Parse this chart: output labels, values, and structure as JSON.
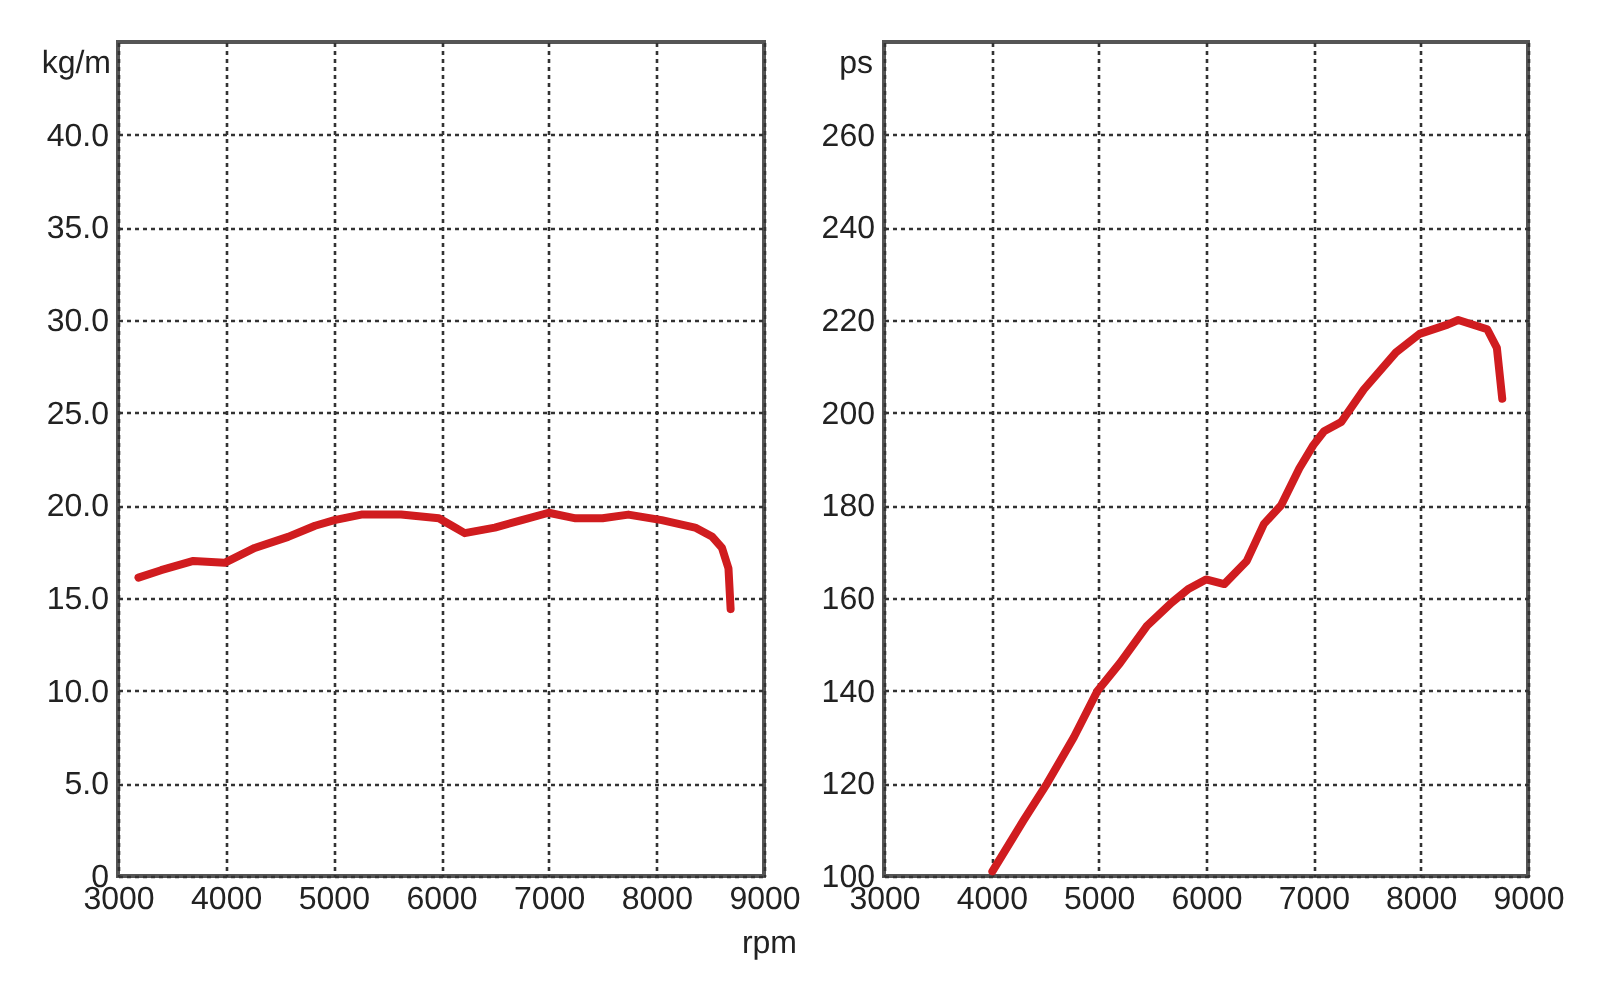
{
  "chart_data": [
    {
      "type": "line",
      "xlabel": "rpm",
      "ylabel": "kg/m",
      "color": "#d01c1f",
      "grid": true,
      "x": [
        3190,
        3400,
        3700,
        3990,
        4270,
        4580,
        4830,
        5010,
        5260,
        5630,
        5980,
        6130,
        6220,
        6500,
        6750,
        7000,
        7250,
        7500,
        7740,
        8050,
        8360,
        8520,
        8610,
        8670,
        8690
      ],
      "values": [
        16.1,
        16.5,
        17.0,
        16.9,
        17.7,
        18.3,
        18.9,
        19.2,
        19.5,
        19.5,
        19.3,
        18.8,
        18.5,
        18.8,
        19.2,
        19.6,
        19.3,
        19.3,
        19.5,
        19.2,
        18.8,
        18.3,
        17.7,
        16.6,
        14.4
      ],
      "xlim": [
        3000,
        9000
      ],
      "xticks": [
        3000,
        4000,
        5000,
        6000,
        7000,
        8000,
        9000
      ],
      "ylim": [
        0,
        45
      ],
      "yticks": [
        0,
        {
          "value": 5,
          "label": "5.0"
        },
        {
          "value": 10,
          "label": "10.0"
        },
        {
          "value": 15,
          "label": "15.0"
        },
        {
          "value": 20,
          "label": "20.0"
        },
        {
          "value": 25,
          "label": "25.0"
        },
        {
          "value": 30,
          "label": "30.0"
        },
        {
          "value": 35,
          "label": "35.0"
        },
        {
          "value": 40,
          "label": "40.0"
        }
      ]
    },
    {
      "type": "line",
      "ylabel": "ps",
      "color": "#d01c1f",
      "grid": true,
      "x": [
        4010,
        4300,
        4520,
        4770,
        4990,
        5200,
        5450,
        5680,
        5840,
        6000,
        6170,
        6380,
        6540,
        6700,
        6870,
        7000,
        7100,
        7260,
        7470,
        7770,
        7990,
        8250,
        8350,
        8620,
        8710,
        8760
      ],
      "values": [
        101,
        112,
        120,
        130,
        140,
        146,
        154,
        159,
        162,
        164,
        163,
        168,
        176,
        180,
        188,
        193,
        196,
        198,
        205,
        213,
        217,
        219,
        220,
        218,
        214,
        203
      ],
      "xlim": [
        3000,
        9000
      ],
      "xticks": [
        3000,
        4000,
        5000,
        6000,
        7000,
        8000,
        9000
      ],
      "ylim": [
        100,
        280
      ],
      "yticks": [
        100,
        120,
        140,
        160,
        180,
        200,
        220,
        240,
        260
      ]
    }
  ]
}
